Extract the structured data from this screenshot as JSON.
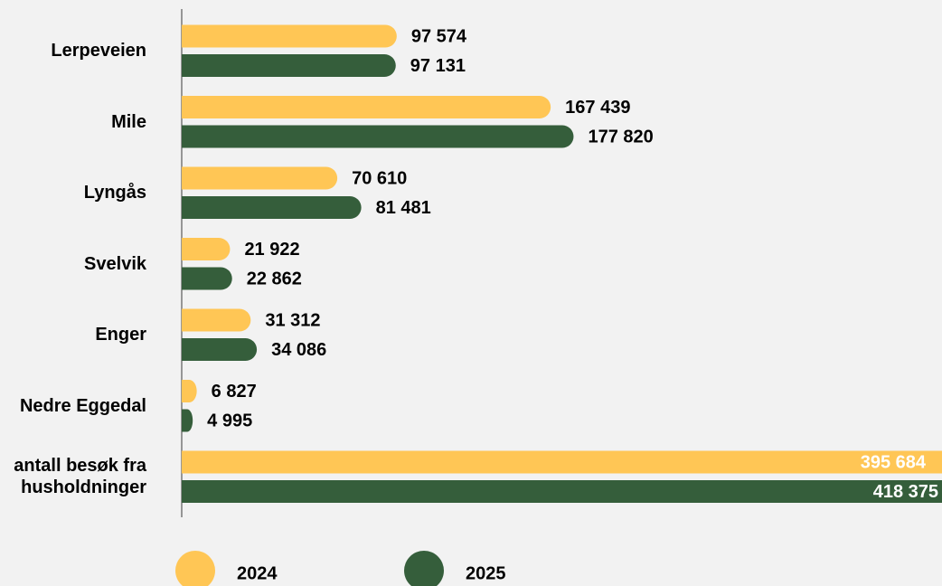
{
  "chart_data": {
    "type": "bar",
    "orientation": "horizontal",
    "categories": [
      "Lerpeveien",
      "Mile",
      "Lyngås",
      "Svelvik",
      "Enger",
      "Nedre Eggedal",
      "antall besøk fra husholdninger"
    ],
    "series": [
      {
        "name": "2024",
        "color": "#ffc655",
        "values": [
          97574,
          167439,
          70610,
          21922,
          31312,
          6827,
          395684
        ],
        "value_labels": [
          "97 574",
          "167 439",
          "70 610",
          "21 922",
          "31 312",
          "6 827",
          "395 684"
        ]
      },
      {
        "name": "2025",
        "color": "#355e3b",
        "values": [
          97131,
          177820,
          81481,
          22862,
          34086,
          4995,
          418375
        ],
        "value_labels": [
          "97 131",
          "177 820",
          "81 481",
          "22 862",
          "34 086",
          "4 995",
          "418 375"
        ]
      }
    ],
    "xlim": [
      0,
      345000
    ]
  }
}
